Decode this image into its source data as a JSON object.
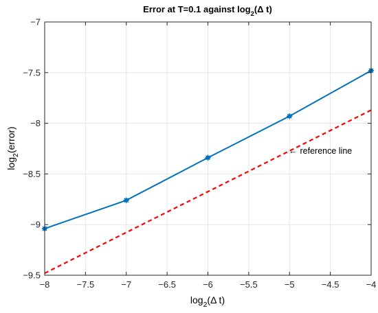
{
  "chart_data": {
    "type": "line",
    "title_main": "Error at T=0.1 against log",
    "title_sub": "2",
    "title_tail": "(Δ t)",
    "xlabel_main": "log",
    "xlabel_sub": "2",
    "xlabel_tail": "(Δ t)",
    "ylabel_main": "log",
    "ylabel_sub": "2",
    "ylabel_tail": "(error)",
    "xlim": [
      -8,
      -4
    ],
    "ylim": [
      -9.5,
      -7
    ],
    "grid": true,
    "xticks": [
      -8,
      -7.5,
      -7,
      -6.5,
      -6,
      -5.5,
      -5,
      -4.5,
      -4
    ],
    "xtick_labels": [
      "−8",
      "−7.5",
      "−7",
      "−6.5",
      "−6",
      "−5.5",
      "−5",
      "−4.5",
      "−4"
    ],
    "yticks": [
      -9.5,
      -9,
      -8.5,
      -8,
      -7.5,
      -7
    ],
    "ytick_labels": [
      "−9.5",
      "−9",
      "−8.5",
      "−8",
      "−7.5",
      "−7"
    ],
    "series": [
      {
        "style": "solid-with-markers",
        "color": "#0072BD",
        "x": [
          -8,
          -7,
          -6,
          -5,
          -4
        ],
        "y": [
          -9.04,
          -8.76,
          -8.34,
          -7.93,
          -7.48
        ]
      },
      {
        "style": "dashed",
        "color": "#FF0000",
        "x": [
          -8,
          -4
        ],
        "y": [
          -9.48,
          -7.87
        ]
      }
    ],
    "annotation": {
      "text": "reference line",
      "arrow": "←",
      "x": -5,
      "y": -8.28
    }
  }
}
